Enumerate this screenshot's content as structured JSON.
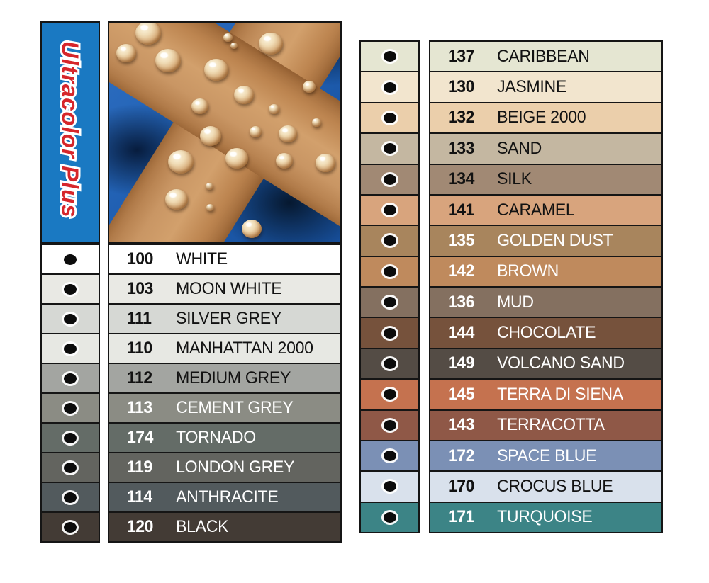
{
  "brand": {
    "banner_label": "Ultracolor Plus",
    "banner_bg": "#1a79c2",
    "banner_text_color": "#d6262b"
  },
  "photo": {
    "name": "grout-cross-with-water-drops",
    "grout_color": "#c08a58",
    "tile_color": "#1d5cae"
  },
  "left_column": {
    "rows": [
      {
        "code": "100",
        "name": "WHITE",
        "swatch": "#ffffff",
        "text_color": "#121212"
      },
      {
        "code": "103",
        "name": "MOON WHITE",
        "swatch": "#e9e9e4",
        "text_color": "#121212"
      },
      {
        "code": "111",
        "name": "SILVER GREY",
        "swatch": "#d6d8d4",
        "text_color": "#121212"
      },
      {
        "code": "110",
        "name": "MANHATTAN 2000",
        "swatch": "#e7e8e3",
        "text_color": "#121212"
      },
      {
        "code": "112",
        "name": "MEDIUM GREY",
        "swatch": "#a3a5a1",
        "text_color": "#121212"
      },
      {
        "code": "113",
        "name": "CEMENT GREY",
        "swatch": "#8b8c84",
        "text_color": "#ffffff"
      },
      {
        "code": "174",
        "name": "TORNADO",
        "swatch": "#646c67",
        "text_color": "#ffffff"
      },
      {
        "code": "119",
        "name": "LONDON GREY",
        "swatch": "#63645f",
        "text_color": "#ffffff"
      },
      {
        "code": "114",
        "name": "ANTHRACITE",
        "swatch": "#525a5d",
        "text_color": "#ffffff"
      },
      {
        "code": "120",
        "name": "BLACK",
        "swatch": "#433b35",
        "text_color": "#ffffff"
      }
    ]
  },
  "right_column": {
    "rows": [
      {
        "code": "137",
        "name": "CARIBBEAN",
        "swatch": "#e5e6d2",
        "text_color": "#121212"
      },
      {
        "code": "130",
        "name": "JASMINE",
        "swatch": "#f2e5ce",
        "text_color": "#121212"
      },
      {
        "code": "132",
        "name": "BEIGE 2000",
        "swatch": "#ebcfab",
        "text_color": "#121212"
      },
      {
        "code": "133",
        "name": "SAND",
        "swatch": "#c4b7a1",
        "text_color": "#121212"
      },
      {
        "code": "134",
        "name": "SILK",
        "swatch": "#a18974",
        "text_color": "#121212"
      },
      {
        "code": "141",
        "name": "CARAMEL",
        "swatch": "#d8a47d",
        "text_color": "#121212"
      },
      {
        "code": "135",
        "name": "GOLDEN DUST",
        "swatch": "#a8855d",
        "text_color": "#ffffff"
      },
      {
        "code": "142",
        "name": "BROWN",
        "swatch": "#bf8a5d",
        "text_color": "#ffffff"
      },
      {
        "code": "136",
        "name": "MUD",
        "swatch": "#847060",
        "text_color": "#ffffff"
      },
      {
        "code": "144",
        "name": "CHOCOLATE",
        "swatch": "#76523c",
        "text_color": "#ffffff"
      },
      {
        "code": "149",
        "name": "VOLCANO SAND",
        "swatch": "#544c45",
        "text_color": "#ffffff"
      },
      {
        "code": "145",
        "name": "TERRA DI SIENA",
        "swatch": "#c5724f",
        "text_color": "#ffffff"
      },
      {
        "code": "143",
        "name": "TERRACOTTA",
        "swatch": "#8f5847",
        "text_color": "#ffffff"
      },
      {
        "code": "172",
        "name": "SPACE BLUE",
        "swatch": "#7b90b5",
        "text_color": "#ffffff"
      },
      {
        "code": "170",
        "name": "CROCUS BLUE",
        "swatch": "#d9e1ec",
        "text_color": "#121212"
      },
      {
        "code": "171",
        "name": "TURQUOISE",
        "swatch": "#3c8486",
        "text_color": "#ffffff"
      }
    ]
  }
}
